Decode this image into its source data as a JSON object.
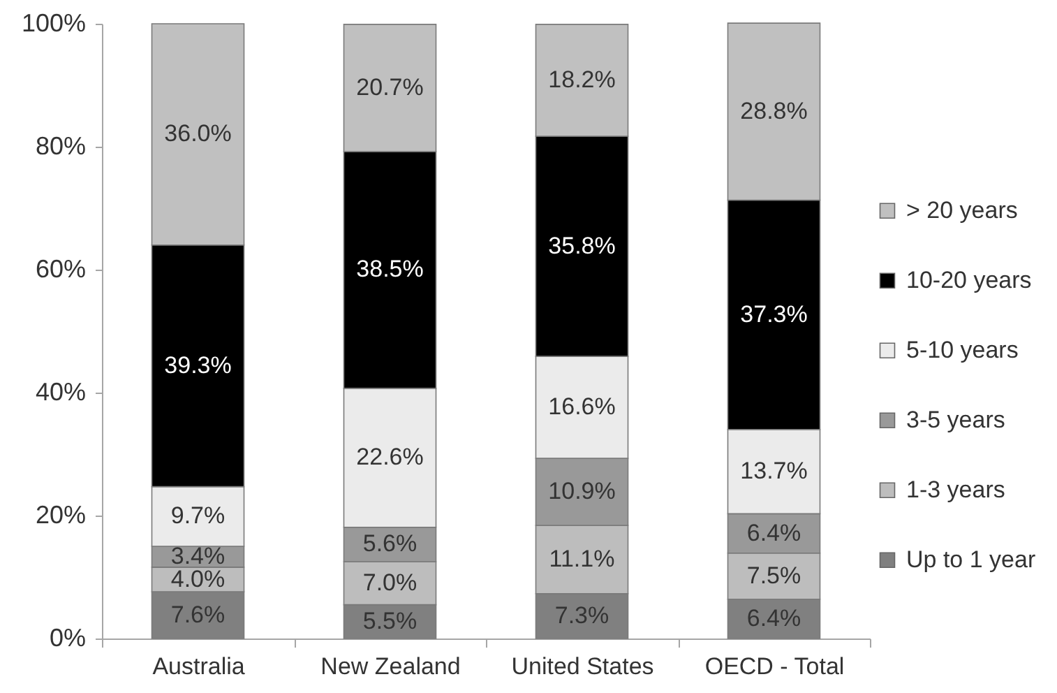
{
  "chart_data": {
    "type": "bar",
    "stacked": true,
    "legend": "right",
    "categories": [
      "Australia",
      "New Zealand",
      "United States",
      "OECD - Total"
    ],
    "series": [
      {
        "name": "Up to 1 year",
        "color": "#808080",
        "values": [
          7.6,
          5.5,
          7.3,
          6.4
        ],
        "value_labels": [
          "7.6%",
          "5.5%",
          "7.3%",
          "6.4%"
        ]
      },
      {
        "name": "1-3 years",
        "color": "#bdbdbd",
        "values": [
          4.0,
          7.0,
          11.1,
          7.5
        ],
        "value_labels": [
          "4.0%",
          "7.0%",
          "11.1%",
          "7.5%"
        ]
      },
      {
        "name": "3-5 years",
        "color": "#999999",
        "values": [
          3.4,
          5.6,
          10.9,
          6.4
        ],
        "value_labels": [
          "3.4%",
          "5.6%",
          "10.9%",
          "6.4%"
        ]
      },
      {
        "name": "5-10 years",
        "color": "#ebebeb",
        "values": [
          9.7,
          22.6,
          16.6,
          13.7
        ],
        "value_labels": [
          "9.7%",
          "22.6%",
          "16.6%",
          "13.7%"
        ]
      },
      {
        "name": "10-20 years",
        "color": "#000000",
        "values": [
          39.3,
          38.5,
          35.8,
          37.3
        ],
        "value_labels": [
          "39.3%",
          "38.5%",
          "35.8%",
          "37.3%"
        ]
      },
      {
        "name": "> 20 years",
        "color": "#c0c0c0",
        "values": [
          36.0,
          20.7,
          18.2,
          28.8
        ],
        "value_labels": [
          "36.0%",
          "20.7%",
          "18.2%",
          "28.8%"
        ]
      }
    ],
    "ylim": [
      0,
      100
    ],
    "yticks": [
      {
        "value": 0,
        "label": "0%"
      },
      {
        "value": 20,
        "label": "20%"
      },
      {
        "value": 40,
        "label": "40%"
      },
      {
        "value": 60,
        "label": "60%"
      },
      {
        "value": 80,
        "label": "80%"
      },
      {
        "value": 100,
        "label": "100%"
      }
    ]
  }
}
